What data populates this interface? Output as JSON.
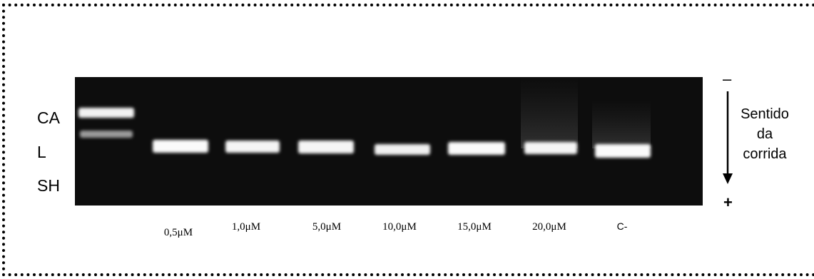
{
  "band_labels": [
    "CA",
    "L",
    "SH"
  ],
  "lane_labels": [
    "0,5μM",
    "1,0μM",
    "5,0μM",
    "10,0μM",
    "15,0μM",
    "20,0μM",
    "C-"
  ],
  "direction": {
    "minus": "–",
    "text": [
      "Sentido",
      "da",
      "corrida"
    ],
    "plus": "+"
  }
}
